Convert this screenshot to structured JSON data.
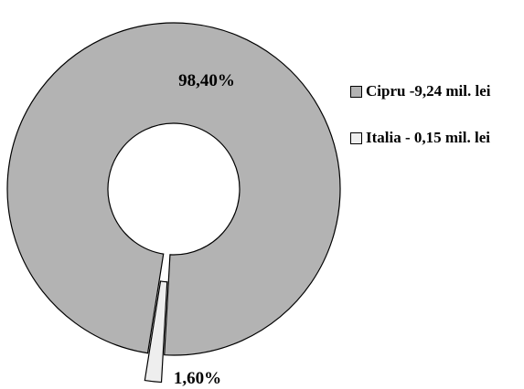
{
  "chart_data": {
    "type": "donut",
    "slices": [
      {
        "label": "Cipru -9,24 mil. lei",
        "value": 98.4,
        "value_label": "98,40%",
        "color": "#b3b3b3"
      },
      {
        "label": "Italia - 0,15 mil. lei",
        "value": 1.6,
        "value_label": "1,60%",
        "color": "#eeeeee"
      }
    ],
    "exploded_slice": "Italia - 0,15 mil. lei",
    "legend_position": "right"
  }
}
